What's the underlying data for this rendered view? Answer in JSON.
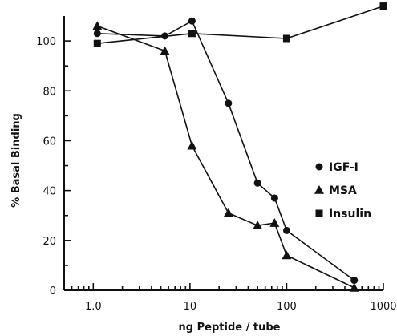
{
  "chart_data": {
    "type": "line",
    "xlabel": "ng Peptide / tube",
    "ylabel": "% Basal Binding",
    "xscale": "log",
    "xlim": [
      0.5,
      1000
    ],
    "ylim": [
      0,
      110
    ],
    "xticks": [
      1,
      10,
      100,
      1000
    ],
    "xtick_labels": [
      "1.0",
      "10",
      "100",
      "1000"
    ],
    "yticks": [
      0,
      20,
      40,
      60,
      80,
      100
    ],
    "ytick_labels": [
      "0",
      "20",
      "40",
      "60",
      "80",
      "100"
    ],
    "legend_position": "right",
    "series": [
      {
        "name": "IGF-I",
        "marker": "circle",
        "points": [
          {
            "x": 1.1,
            "y": 103
          },
          {
            "x": 5.5,
            "y": 102
          },
          {
            "x": 10.5,
            "y": 108
          },
          {
            "x": 25,
            "y": 75
          },
          {
            "x": 50,
            "y": 43
          },
          {
            "x": 75,
            "y": 37
          },
          {
            "x": 100,
            "y": 24
          },
          {
            "x": 500,
            "y": 4
          }
        ]
      },
      {
        "name": "MSA",
        "marker": "triangle",
        "points": [
          {
            "x": 1.1,
            "y": 106
          },
          {
            "x": 5.5,
            "y": 96
          },
          {
            "x": 10.5,
            "y": 58
          },
          {
            "x": 25,
            "y": 31
          },
          {
            "x": 50,
            "y": 26
          },
          {
            "x": 75,
            "y": 27
          },
          {
            "x": 100,
            "y": 14
          },
          {
            "x": 500,
            "y": 1
          }
        ]
      },
      {
        "name": "Insulin",
        "marker": "square",
        "points": [
          {
            "x": 1.1,
            "y": 99
          },
          {
            "x": 10.5,
            "y": 103
          },
          {
            "x": 100,
            "y": 101
          },
          {
            "x": 1000,
            "y": 114
          }
        ]
      }
    ]
  }
}
